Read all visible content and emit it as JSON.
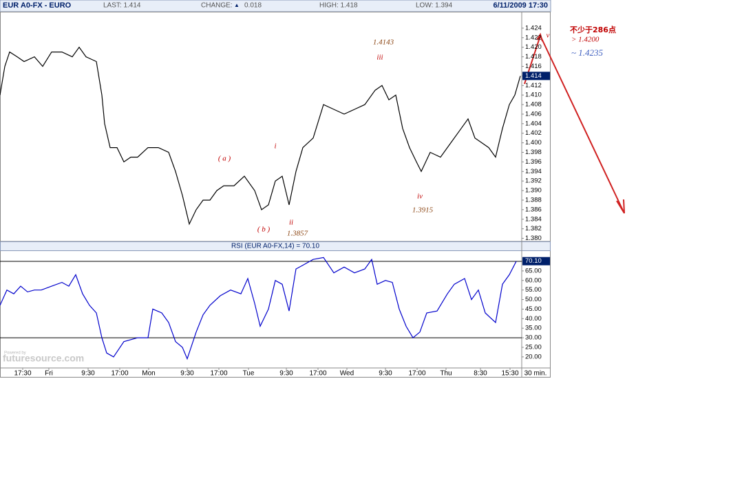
{
  "header": {
    "symbol": "EUR A0-FX - EURO",
    "last": "LAST: 1.414",
    "change_label": "CHANGE:",
    "change_arrow": "▲",
    "change": "0.018",
    "high": "HIGH: 1.418",
    "low": "LOW: 1.394",
    "datetime": "6/11/2009 17:30"
  },
  "watermark": {
    "small": "Powered by",
    "brand": "futuresource.com"
  },
  "chart_data": [
    {
      "type": "line",
      "series": [
        {
          "name": "EUR A0-FX",
          "color": "#000000",
          "x": [
            0,
            7,
            14,
            25,
            35,
            50,
            62,
            75,
            90,
            105,
            115,
            125,
            140,
            148,
            152,
            160,
            170,
            180,
            190,
            200,
            215,
            230,
            245,
            255,
            265,
            275,
            285,
            295,
            305,
            315,
            325,
            340,
            355,
            370,
            380,
            390,
            400,
            410,
            420,
            430,
            440,
            455,
            470,
            485,
            500,
            515,
            530,
            545,
            555,
            565,
            575,
            585,
            595,
            605,
            612,
            625,
            640,
            655,
            670,
            680,
            690,
            700,
            710,
            720,
            730,
            740,
            748,
            756
          ],
          "values": [
            1.41,
            1.416,
            1.419,
            1.418,
            1.417,
            1.418,
            1.416,
            1.419,
            1.419,
            1.418,
            1.42,
            1.418,
            1.417,
            1.41,
            1.404,
            1.399,
            1.399,
            1.396,
            1.397,
            1.397,
            1.399,
            1.399,
            1.398,
            1.394,
            1.389,
            1.383,
            1.386,
            1.388,
            1.388,
            1.39,
            1.391,
            1.391,
            1.393,
            1.39,
            1.386,
            1.387,
            1.392,
            1.393,
            1.387,
            1.394,
            1.399,
            1.401,
            1.408,
            1.407,
            1.406,
            1.407,
            1.408,
            1.411,
            1.412,
            1.409,
            1.41,
            1.403,
            1.399,
            1.396,
            1.394,
            1.398,
            1.397,
            1.4,
            1.403,
            1.405,
            1.401,
            1.4,
            1.399,
            1.397,
            1.403,
            1.408,
            1.41,
            1.414
          ]
        }
      ],
      "xlim": [
        0,
        758
      ],
      "ylim": [
        1.3795,
        1.4273
      ],
      "yticks": [
        {
          "value": 1.38,
          "label": "1.380"
        },
        {
          "value": 1.382,
          "label": "1.382"
        },
        {
          "value": 1.384,
          "label": "1.384"
        },
        {
          "value": 1.386,
          "label": "1.386"
        },
        {
          "value": 1.388,
          "label": "1.388"
        },
        {
          "value": 1.39,
          "label": "1.390"
        },
        {
          "value": 1.392,
          "label": "1.392"
        },
        {
          "value": 1.394,
          "label": "1.394"
        },
        {
          "value": 1.396,
          "label": "1.396"
        },
        {
          "value": 1.398,
          "label": "1.398"
        },
        {
          "value": 1.4,
          "label": "1.400"
        },
        {
          "value": 1.402,
          "label": "1.402"
        },
        {
          "value": 1.404,
          "label": "1.404"
        },
        {
          "value": 1.406,
          "label": "1.406"
        },
        {
          "value": 1.408,
          "label": "1.408"
        },
        {
          "value": 1.41,
          "label": "1.410"
        },
        {
          "value": 1.412,
          "label": "1.412"
        },
        {
          "value": 1.414,
          "label": "1.414"
        },
        {
          "value": 1.416,
          "label": "1.416"
        },
        {
          "value": 1.418,
          "label": "1.418"
        },
        {
          "value": 1.42,
          "label": "1.420"
        },
        {
          "value": 1.422,
          "label": "1.422"
        },
        {
          "value": 1.424,
          "label": "1.424"
        }
      ],
      "last_marker": {
        "value": 1.414,
        "label": "1.414"
      },
      "annotations": [
        {
          "text": "( a )",
          "color": "#c00000"
        },
        {
          "text": "i",
          "color": "#c00000"
        },
        {
          "text": "( b )",
          "color": "#c00000"
        },
        {
          "text": "ii",
          "color": "#c00000"
        },
        {
          "text": "1.3857",
          "color": "#8b4513"
        },
        {
          "text": "iii",
          "color": "#c00000"
        },
        {
          "text": "1.4143",
          "color": "#8b4513"
        },
        {
          "text": "iv",
          "color": "#c00000"
        },
        {
          "text": "1.3915",
          "color": "#8b4513"
        },
        {
          "text": "v",
          "color": "#c00000"
        },
        {
          "text": "不少于286点",
          "color": "#c00000"
        },
        {
          "text": "> 1.4200",
          "color": "#c00000"
        },
        {
          "text": "~ 1.4235",
          "color": "#4060c0"
        }
      ]
    },
    {
      "type": "line",
      "title": "RSI (EUR A0-FX,14) = 70.10",
      "series": [
        {
          "name": "RSI",
          "color": "#0000cc",
          "x": [
            0,
            10,
            20,
            30,
            40,
            50,
            60,
            75,
            90,
            100,
            110,
            120,
            130,
            140,
            148,
            155,
            165,
            180,
            200,
            215,
            222,
            235,
            245,
            255,
            265,
            272,
            285,
            295,
            305,
            320,
            335,
            350,
            360,
            370,
            378,
            390,
            400,
            410,
            420,
            430,
            440,
            455,
            470,
            485,
            500,
            515,
            530,
            540,
            548,
            560,
            570,
            580,
            590,
            600,
            610,
            620,
            635,
            650,
            660,
            675,
            685,
            695,
            705,
            720,
            730,
            740,
            750
          ],
          "values": [
            47,
            55,
            53,
            57,
            54,
            55,
            55,
            57,
            59,
            57,
            63,
            53,
            47,
            43,
            30,
            22,
            20,
            28,
            30,
            30,
            45,
            43,
            38,
            28,
            25,
            19,
            33,
            42,
            47,
            52,
            55,
            53,
            61,
            48,
            36,
            45,
            60,
            58,
            44,
            66,
            68,
            71,
            72,
            64,
            67,
            64,
            66,
            71,
            58,
            60,
            59,
            45,
            36,
            30,
            33,
            43,
            44,
            53,
            58,
            61,
            50,
            55,
            43,
            38,
            58,
            63,
            70
          ]
        }
      ],
      "xlim": [
        0,
        758
      ],
      "ylim": [
        14.2,
        75.4
      ],
      "yticks": [
        {
          "value": 20,
          "label": "20.00"
        },
        {
          "value": 25,
          "label": "25.00"
        },
        {
          "value": 30,
          "label": "30.00"
        },
        {
          "value": 35,
          "label": "35.00"
        },
        {
          "value": 40,
          "label": "40.00"
        },
        {
          "value": 45,
          "label": "45.00"
        },
        {
          "value": 50,
          "label": "50.00"
        },
        {
          "value": 55,
          "label": "55.00"
        },
        {
          "value": 60,
          "label": "60.00"
        },
        {
          "value": 65,
          "label": "65.00"
        },
        {
          "value": 70,
          "label": "70.00"
        }
      ],
      "reference_lines": [
        70,
        30
      ],
      "last_marker": {
        "value": 70.1,
        "label": "70.10"
      },
      "xticks": [
        {
          "value": 33,
          "label": "17:30"
        },
        {
          "value": 71,
          "label": "Fri"
        },
        {
          "value": 128,
          "label": "9:30"
        },
        {
          "value": 174,
          "label": "17:00"
        },
        {
          "value": 216,
          "label": "Mon"
        },
        {
          "value": 272,
          "label": "9:30"
        },
        {
          "value": 318,
          "label": "17:00"
        },
        {
          "value": 361,
          "label": "Tue"
        },
        {
          "value": 416,
          "label": "9:30"
        },
        {
          "value": 462,
          "label": "17:00"
        },
        {
          "value": 504,
          "label": "Wed"
        },
        {
          "value": 560,
          "label": "9:30"
        },
        {
          "value": 606,
          "label": "17:00"
        },
        {
          "value": 648,
          "label": "Thu"
        },
        {
          "value": 698,
          "label": "8:30"
        },
        {
          "value": 741,
          "label": "15:30"
        }
      ],
      "interval": "30 min."
    }
  ]
}
